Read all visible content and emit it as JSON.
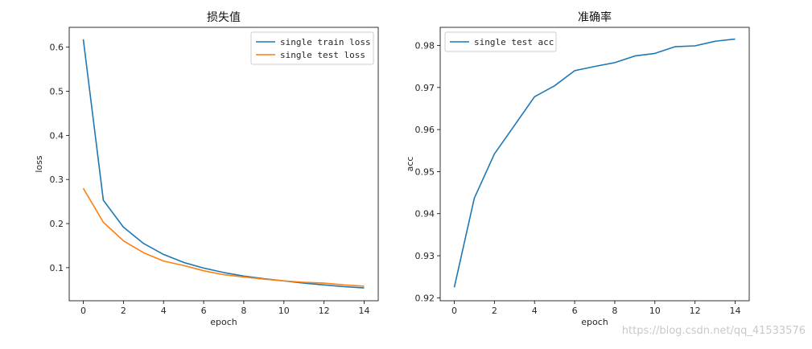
{
  "chart_data": [
    {
      "type": "line",
      "title": "损失值",
      "xlabel": "epoch",
      "ylabel": "loss",
      "x": [
        0,
        1,
        2,
        3,
        4,
        5,
        6,
        7,
        8,
        9,
        10,
        11,
        12,
        13,
        14
      ],
      "xticks": [
        "0",
        "2",
        "4",
        "6",
        "8",
        "10",
        "12",
        "14"
      ],
      "xtick_values": [
        0,
        2,
        4,
        6,
        8,
        10,
        12,
        14
      ],
      "yticks": [
        "0.1",
        "0.2",
        "0.3",
        "0.4",
        "0.5",
        "0.6"
      ],
      "ytick_values": [
        0.1,
        0.2,
        0.3,
        0.4,
        0.5,
        0.6
      ],
      "xlim": [
        -0.7,
        14.7
      ],
      "ylim": [
        0.025,
        0.645
      ],
      "grid": false,
      "legend": "upper right",
      "series": [
        {
          "name": "single train loss",
          "color": "#1f77b4",
          "values": [
            0.618,
            0.253,
            0.192,
            0.155,
            0.13,
            0.112,
            0.099,
            0.089,
            0.081,
            0.075,
            0.07,
            0.065,
            0.061,
            0.057,
            0.054
          ]
        },
        {
          "name": "single test loss",
          "color": "#ff7f0e",
          "values": [
            0.28,
            0.203,
            0.161,
            0.134,
            0.115,
            0.105,
            0.093,
            0.084,
            0.079,
            0.074,
            0.07,
            0.067,
            0.065,
            0.061,
            0.058
          ]
        }
      ]
    },
    {
      "type": "line",
      "title": "准确率",
      "xlabel": "epoch",
      "ylabel": "acc",
      "x": [
        0,
        1,
        2,
        3,
        4,
        5,
        6,
        7,
        8,
        9,
        10,
        11,
        12,
        13,
        14
      ],
      "xticks": [
        "0",
        "2",
        "4",
        "6",
        "8",
        "10",
        "12",
        "14"
      ],
      "xtick_values": [
        0,
        2,
        4,
        6,
        8,
        10,
        12,
        14
      ],
      "yticks": [
        "0.92",
        "0.93",
        "0.94",
        "0.95",
        "0.96",
        "0.97",
        "0.98"
      ],
      "ytick_values": [
        0.92,
        0.93,
        0.94,
        0.95,
        0.96,
        0.97,
        0.98
      ],
      "xlim": [
        -0.7,
        14.7
      ],
      "ylim": [
        0.9193,
        0.9843
      ],
      "grid": false,
      "legend": "upper left",
      "series": [
        {
          "name": "single test acc",
          "color": "#1f77b4",
          "values": [
            0.9225,
            0.9437,
            0.9542,
            0.961,
            0.9678,
            0.9704,
            0.974,
            0.975,
            0.9759,
            0.9775,
            0.9781,
            0.9797,
            0.9799,
            0.981,
            0.9815
          ]
        }
      ]
    }
  ],
  "watermark": "https://blog.csdn.net/qq_41533576"
}
